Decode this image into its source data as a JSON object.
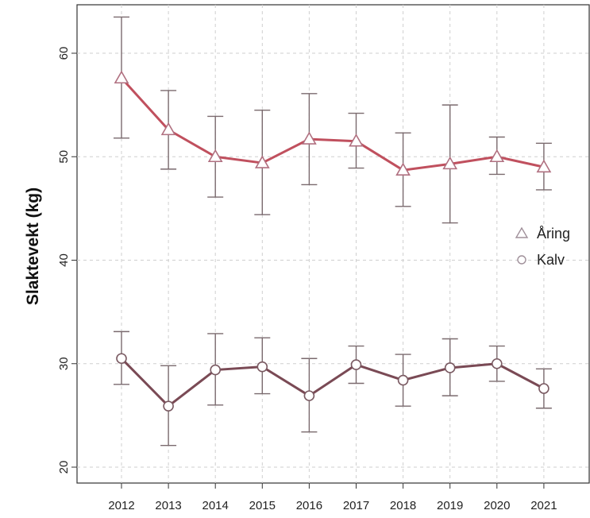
{
  "chart_data": {
    "type": "line",
    "title": "",
    "xlabel": "",
    "ylabel": "Slaktevekt (kg)",
    "ylim": [
      18,
      65
    ],
    "yticks": [
      20,
      30,
      40,
      50,
      60
    ],
    "grid": true,
    "legend_position": "right",
    "categories": [
      "2012",
      "2013",
      "2014",
      "2015",
      "2016",
      "2017",
      "2018",
      "2019",
      "2020",
      "2021"
    ],
    "series": [
      {
        "name": "Åring",
        "marker": "triangle",
        "color": "#c0505e",
        "values": [
          57.6,
          52.6,
          50.0,
          49.4,
          51.7,
          51.5,
          48.7,
          49.3,
          50.0,
          49.0
        ],
        "lower": [
          51.8,
          48.8,
          46.1,
          44.4,
          47.3,
          48.9,
          45.2,
          43.6,
          48.3,
          46.8
        ],
        "upper": [
          63.5,
          56.4,
          53.9,
          54.5,
          56.1,
          54.2,
          52.3,
          55.0,
          51.9,
          51.3
        ]
      },
      {
        "name": "Kalv",
        "marker": "circle",
        "color": "#7a4a55",
        "values": [
          30.5,
          25.9,
          29.4,
          29.7,
          26.9,
          29.9,
          28.4,
          29.6,
          30.0,
          27.6
        ],
        "lower": [
          28.0,
          22.1,
          26.0,
          27.1,
          23.4,
          28.1,
          25.9,
          26.9,
          28.3,
          25.7
        ],
        "upper": [
          33.1,
          29.8,
          32.9,
          32.5,
          30.5,
          31.7,
          30.9,
          32.4,
          31.7,
          29.5
        ]
      }
    ]
  }
}
